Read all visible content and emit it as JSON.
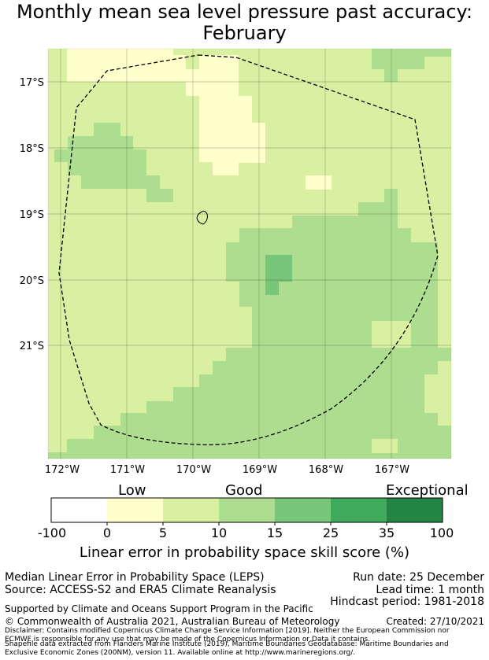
{
  "title": {
    "line1": "Monthly mean sea level pressure past accuracy:",
    "line2": "February"
  },
  "map": {
    "lat_labels": [
      "17°S",
      "18°S",
      "19°S",
      "20°S",
      "21°S"
    ],
    "lon_labels": [
      "172°W",
      "171°W",
      "170°W",
      "169°W",
      "168°W",
      "167°W"
    ],
    "colors": {
      "cat_0_5": "#ffffcc",
      "cat_5_10": "#d9f0a3",
      "cat_10_15": "#addd8e",
      "cat_15_25": "#78c679",
      "cat_25_35": "#41ab5d",
      "cat_35_100": "#238443"
    }
  },
  "colorbar": {
    "words": {
      "low": "Low",
      "good": "Good",
      "exceptional": "Exceptional"
    },
    "ticks": [
      "-100",
      "0",
      "5",
      "10",
      "15",
      "25",
      "35",
      "100"
    ],
    "colors": [
      "#ffffff",
      "#ffffcc",
      "#d9f0a3",
      "#addd8e",
      "#78c679",
      "#41ab5d",
      "#238443"
    ],
    "label": "Linear error in probability space skill score (%)"
  },
  "footer": {
    "left1": "Median Linear Error in Probability Space (LEPS)",
    "left2": "Source: ACCESS-S2 and ERA5 Climate Reanalysis",
    "run_date": "Run date: 25 December",
    "lead_time": "Lead time: 1 month",
    "hindcast": "Hindcast period: 1981-2018",
    "support": "Supported by Climate and Oceans Support Program in the Pacific",
    "copyright": "© Commonwealth of Australia 2021, Australian Bureau of Meteorology",
    "created": "Created: 27/10/2021",
    "disclaimer": "Disclaimer: Contains modified Copernicus Climate Change Service Information [2019]. Neither the European Commission nor ECMWF is responsible for any use that may be made of the Copernicus Information or Data it contains.",
    "shapefile": "Shapefile data extracted from Flanders Marine Institute (2019), Maritime Boundaries Geodatabase: Maritime Boundaries and Exclusive Economic Zones (200NM), version 11. Available online at http://www.marineregions.org/."
  }
}
